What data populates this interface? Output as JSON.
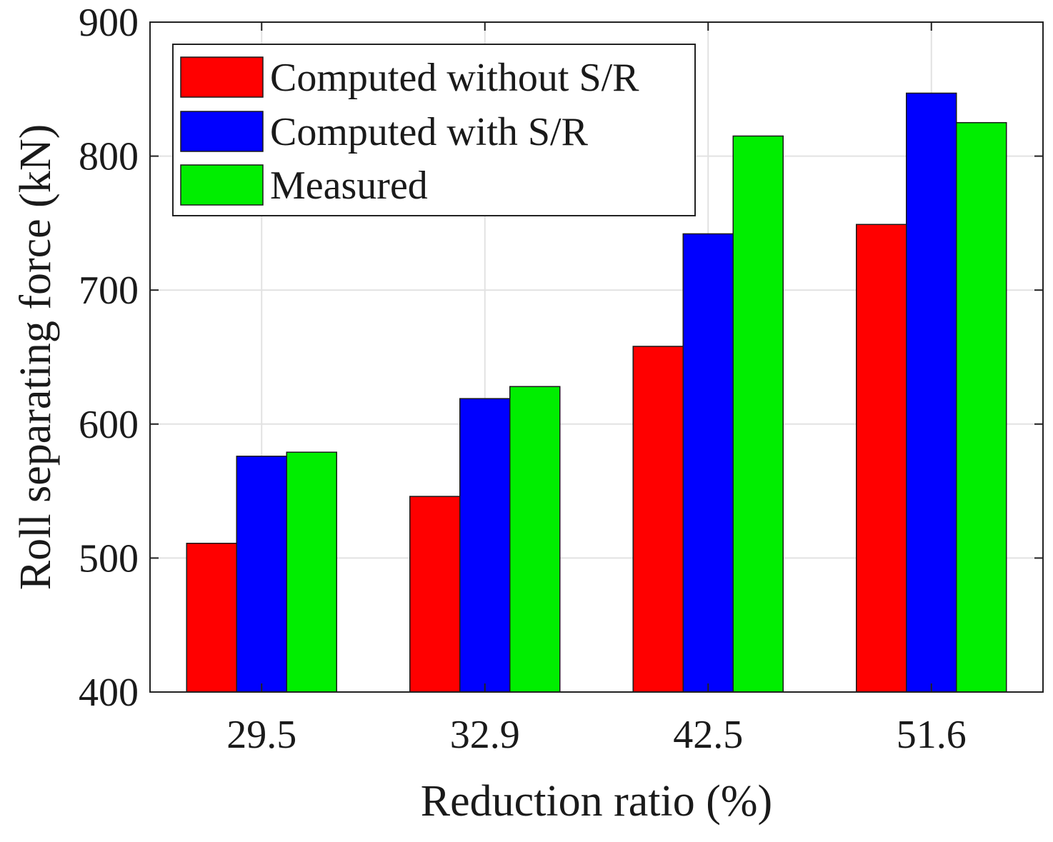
{
  "chart_data": {
    "type": "bar",
    "title": "",
    "xlabel": "Reduction ratio (%)",
    "ylabel": "Roll separating force (kN)",
    "categories": [
      "29.5",
      "32.9",
      "42.5",
      "51.6"
    ],
    "ylim": [
      400,
      900
    ],
    "yticks": [
      400,
      500,
      600,
      700,
      800,
      900
    ],
    "yticklabels": [
      "400",
      "500",
      "600",
      "700",
      "800",
      "900"
    ],
    "grid": true,
    "legend_position": "top-left",
    "series": [
      {
        "name": "Computed without S/R",
        "color": "#ff0000",
        "values": [
          511,
          546,
          658,
          749
        ]
      },
      {
        "name": "Computed with S/R",
        "color": "#0000ff",
        "values": [
          576,
          619,
          742,
          847
        ]
      },
      {
        "name": "Measured",
        "color": "#00ee00",
        "values": [
          579,
          628,
          815,
          825
        ]
      }
    ]
  }
}
